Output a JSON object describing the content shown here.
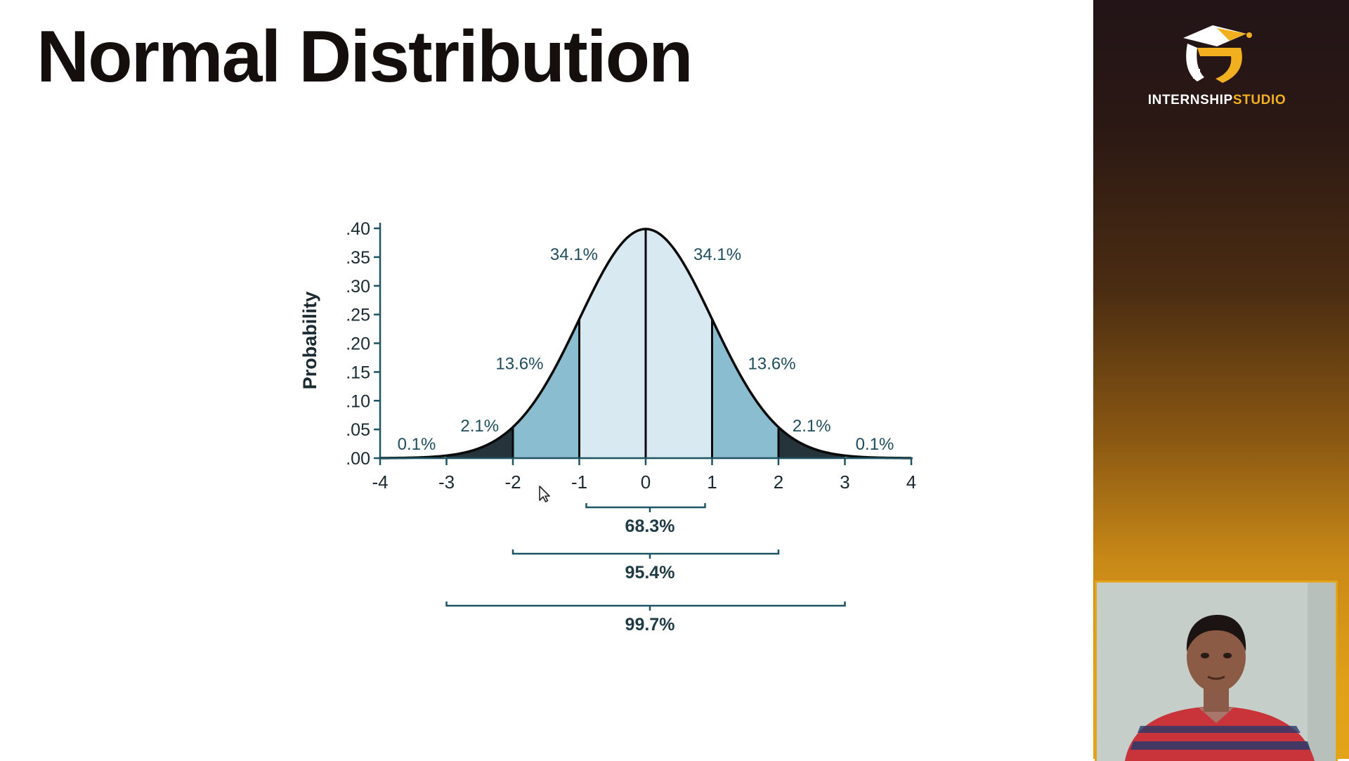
{
  "slide": {
    "title": "Normal Distribution"
  },
  "brand": {
    "name_part1": "INTERNSHIP",
    "name_part2": "STUDIO",
    "logo_icon": "graduation-cap-logo-icon",
    "accent": "#f2b01e"
  },
  "webcam": {
    "content": "presenter-video-feed"
  },
  "cursor": {
    "icon": "mouse-pointer-icon"
  },
  "chart_data": {
    "type": "area",
    "title": "",
    "xlabel": "",
    "ylabel": "Probability",
    "xlim": [
      -4,
      4
    ],
    "ylim": [
      0,
      0.4
    ],
    "grid": false,
    "legend": "none",
    "x_ticks": [
      "-4",
      "-3",
      "-2",
      "-1",
      "0",
      "1",
      "2",
      "3",
      "4"
    ],
    "y_ticks": [
      ".00",
      ".05",
      ".10",
      ".15",
      ".20",
      ".25",
      ".30",
      ".35",
      ".40"
    ],
    "curve": {
      "x": [
        -4,
        -3.5,
        -3,
        -2.5,
        -2,
        -1.5,
        -1,
        -0.5,
        0,
        0.5,
        1,
        1.5,
        2,
        2.5,
        3,
        3.5,
        4
      ],
      "y": [
        0.0001,
        0.0009,
        0.0044,
        0.0175,
        0.054,
        0.1295,
        0.242,
        0.3521,
        0.3989,
        0.3521,
        0.242,
        0.1295,
        0.054,
        0.0175,
        0.0044,
        0.0009,
        0.0001
      ]
    },
    "regions": [
      {
        "from": -4,
        "to": -3,
        "label": "0.1%",
        "shade": "tail"
      },
      {
        "from": -3,
        "to": -2,
        "label": "2.1%",
        "shade": "dark"
      },
      {
        "from": -2,
        "to": -1,
        "label": "13.6%",
        "shade": "medium"
      },
      {
        "from": -1,
        "to": 0,
        "label": "34.1%",
        "shade": "light"
      },
      {
        "from": 0,
        "to": 1,
        "label": "34.1%",
        "shade": "light"
      },
      {
        "from": 1,
        "to": 2,
        "label": "13.6%",
        "shade": "medium"
      },
      {
        "from": 2,
        "to": 3,
        "label": "2.1%",
        "shade": "dark"
      },
      {
        "from": 3,
        "to": 4,
        "label": "0.1%",
        "shade": "tail"
      }
    ],
    "ranges": [
      {
        "from": -1,
        "to": 1,
        "label": "68.3%"
      },
      {
        "from": -2,
        "to": 2,
        "label": "95.4%"
      },
      {
        "from": -3,
        "to": 3,
        "label": "99.7%"
      }
    ],
    "colors": {
      "light": "#d8e9f1",
      "medium": "#8bbdd0",
      "dark": "#25343b",
      "tail": "#ffffff",
      "axis": "#1e5464",
      "curve": "#0a0a0a",
      "label": "#1f4d5c"
    }
  }
}
